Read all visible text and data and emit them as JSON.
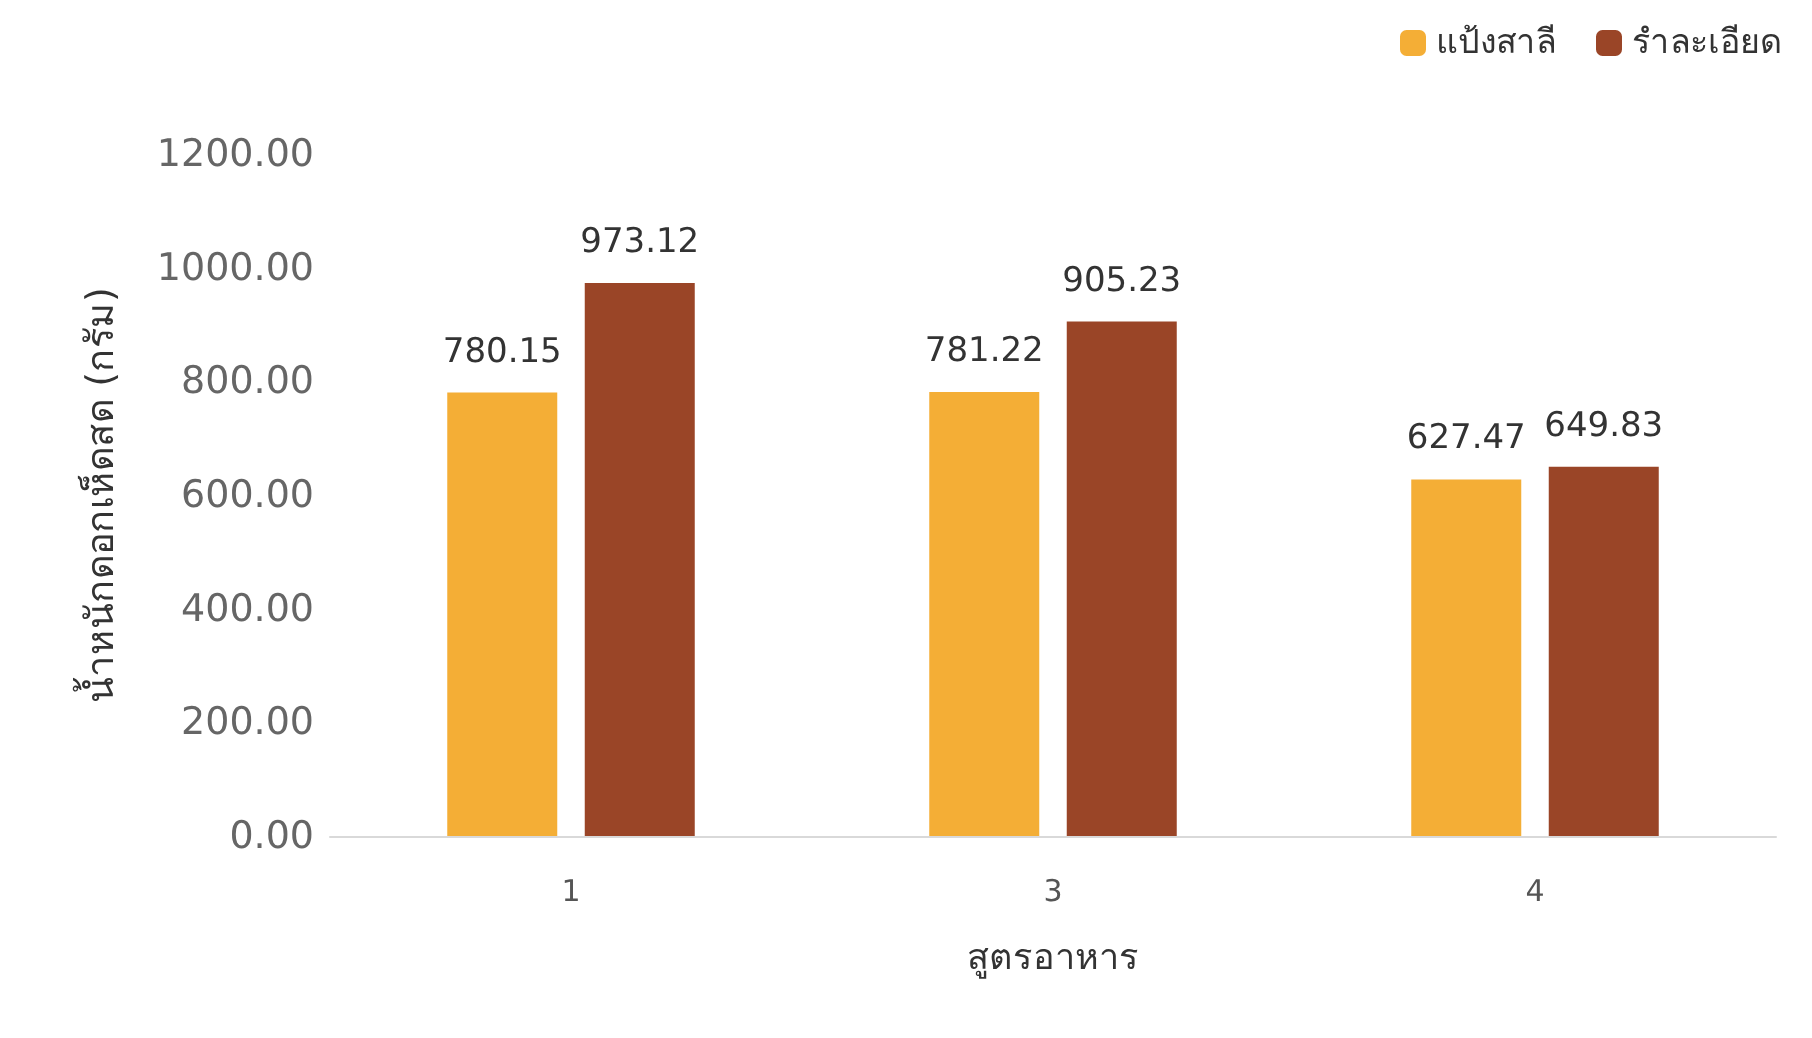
{
  "chart_data": {
    "type": "bar",
    "xlabel": "สูตรอาหาร",
    "ylabel": "น้ำหนักดอกเห็ดสด (กรัม)",
    "categories": [
      "1",
      "3",
      "4"
    ],
    "series": [
      {
        "name": "แป้งสาลี",
        "color": "#f4ae36",
        "values": [
          780.15,
          781.22,
          627.47
        ]
      },
      {
        "name": "รำละเอียด",
        "color": "#9a4527",
        "values": [
          973.12,
          905.23,
          649.83
        ]
      }
    ],
    "ylim": [
      0,
      1200
    ],
    "yticks": [
      {
        "value": 0,
        "label": "0.00"
      },
      {
        "value": 200,
        "label": "200.00"
      },
      {
        "value": 400,
        "label": "400.00"
      },
      {
        "value": 600,
        "label": "600.00"
      },
      {
        "value": 800,
        "label": "800.00"
      },
      {
        "value": 1000,
        "label": "1000.00"
      },
      {
        "value": 1200,
        "label": "1200.00"
      }
    ],
    "grid": false,
    "legend": "top right",
    "data_labels": true
  }
}
